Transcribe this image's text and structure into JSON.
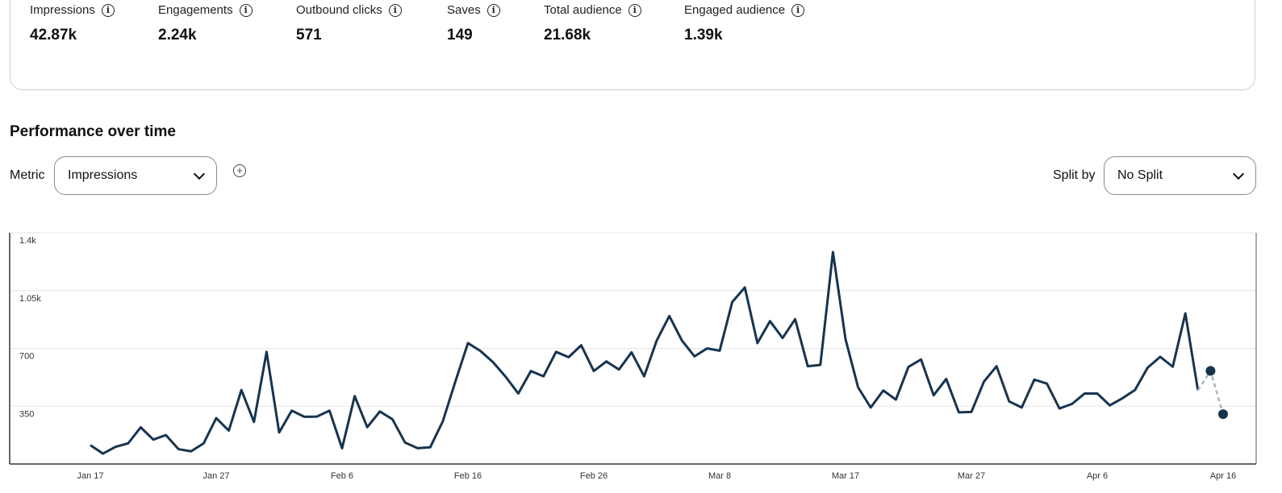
{
  "metrics": [
    {
      "label": "Impressions",
      "value": "42.87k"
    },
    {
      "label": "Engagements",
      "value": "2.24k"
    },
    {
      "label": "Outbound clicks",
      "value": "571"
    },
    {
      "label": "Saves",
      "value": "149"
    },
    {
      "label": "Total audience",
      "value": "21.68k"
    },
    {
      "label": "Engaged audience",
      "value": "1.39k"
    }
  ],
  "info_icon": "i",
  "section_title": "Performance over time",
  "metric_control": {
    "label": "Metric",
    "selected": "Impressions"
  },
  "add_icon": "+",
  "split_control": {
    "label": "Split by",
    "selected": "No Split"
  },
  "colors": {
    "line": "#17344f",
    "projected": "#a9b4bf",
    "grid": "#e6e6e6"
  },
  "chart_data": {
    "type": "line",
    "title": "Performance over time",
    "xlabel": "",
    "ylabel": "Impressions",
    "ylim": [
      0,
      1400
    ],
    "yticks": [
      350,
      700,
      1050,
      1400
    ],
    "ytick_labels": [
      "350",
      "700",
      "1.05k",
      "1.4k"
    ],
    "xtick_labels": [
      "Jan 17",
      "Jan 27",
      "Feb 6",
      "Feb 16",
      "Feb 26",
      "Mar 8",
      "Mar 17",
      "Mar 27",
      "Apr 6",
      "Apr 16"
    ],
    "xtick_every": 10,
    "grid": true,
    "series": [
      {
        "name": "Impressions",
        "values": [
          114,
          63,
          104,
          125,
          222,
          148,
          175,
          90,
          77,
          125,
          278,
          202,
          448,
          255,
          679,
          191,
          323,
          286,
          287,
          323,
          95,
          411,
          223,
          318,
          271,
          130,
          96,
          101,
          258,
          499,
          732,
          684,
          616,
          528,
          427,
          563,
          531,
          679,
          647,
          719,
          563,
          621,
          572,
          676,
          531,
          748,
          896,
          748,
          652,
          700,
          686,
          981,
          1069,
          732,
          865,
          763,
          877,
          592,
          600,
          1283,
          756,
          464,
          342,
          445,
          390,
          588,
          633,
          416,
          515,
          313,
          315,
          499,
          592,
          379,
          342,
          511,
          487,
          336,
          364,
          427,
          427,
          355,
          398,
          448,
          583,
          649,
          589,
          912,
          446
        ]
      },
      {
        "name": "Projected",
        "start_index": 88,
        "values": [
          446,
          564,
          302
        ]
      }
    ]
  }
}
